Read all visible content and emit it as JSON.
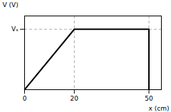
{
  "chart_data": {
    "type": "line",
    "x": [
      0,
      0,
      20,
      50,
      50
    ],
    "values": [
      0,
      0,
      1,
      1,
      0
    ],
    "color": "#000000",
    "xlabel": "x (cm)",
    "ylabel": "V (V)",
    "xlim": [
      0,
      55
    ],
    "ylim": [
      0,
      1.22
    ],
    "xticks": [
      0,
      20,
      50
    ],
    "yticks": [
      {
        "value": 1,
        "label": "Vₛ"
      }
    ],
    "grid": true
  }
}
